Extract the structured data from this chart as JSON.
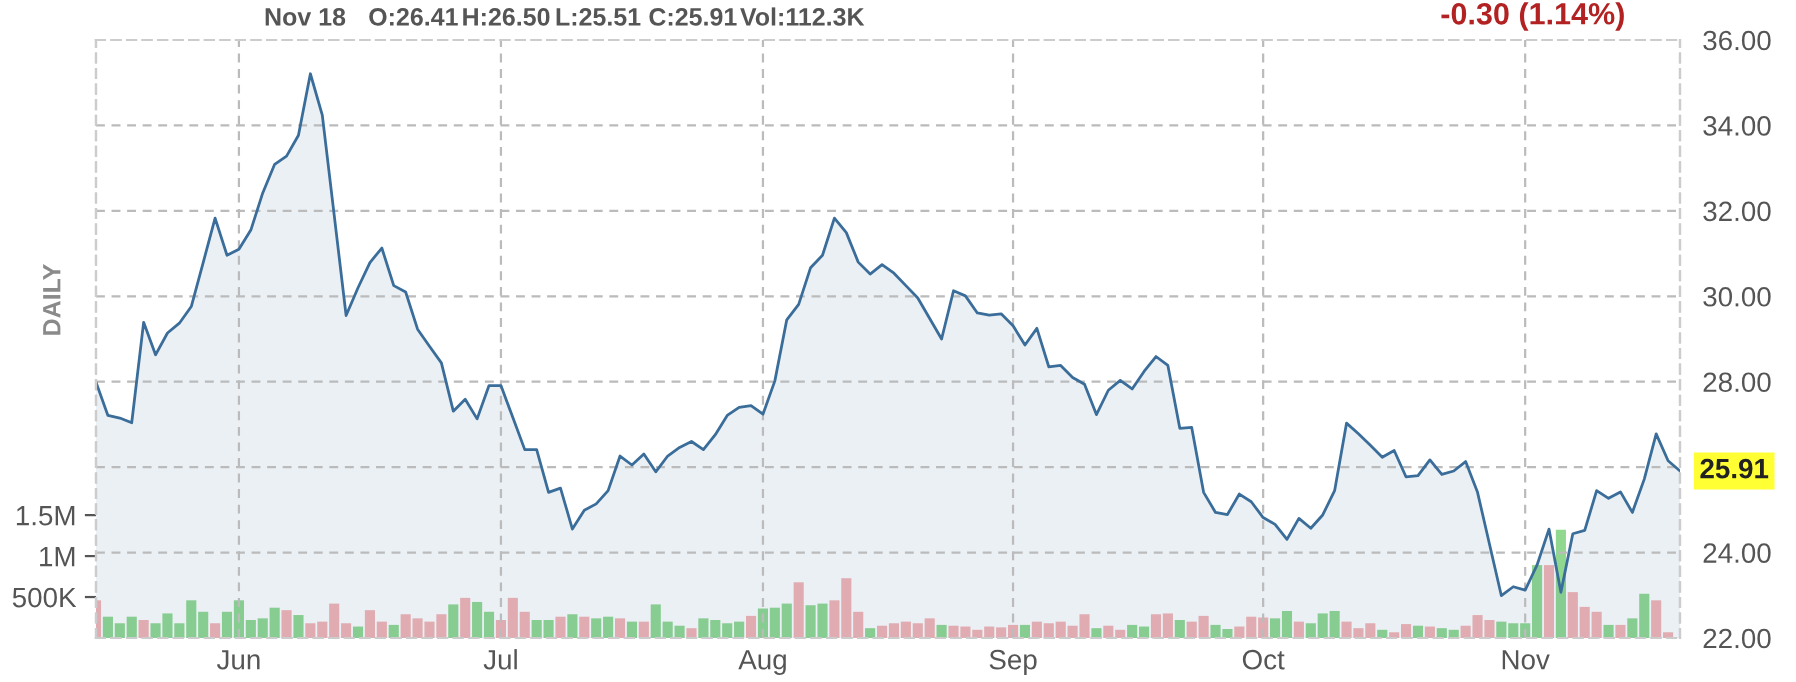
{
  "chart_data": {
    "type": "area",
    "annotations": [
      "Nov 18",
      "O:26.41",
      "H:26.50",
      "L:25.51",
      "C:25.91",
      "Vol:112.3K",
      "-0.30 (1.14%)",
      "DAILY",
      "25.91"
    ],
    "categories": [
      null,
      null,
      null,
      null,
      null,
      null,
      null,
      null,
      null,
      null,
      null,
      null,
      "Jun",
      null,
      null,
      null,
      null,
      null,
      null,
      null,
      null,
      null,
      null,
      null,
      null,
      null,
      null,
      null,
      null,
      null,
      null,
      null,
      null,
      null,
      "Jul",
      null,
      null,
      null,
      null,
      null,
      null,
      null,
      null,
      null,
      null,
      null,
      null,
      null,
      null,
      null,
      null,
      null,
      null,
      null,
      null,
      null,
      "Aug",
      null,
      null,
      null,
      null,
      null,
      null,
      null,
      null,
      null,
      null,
      null,
      null,
      null,
      null,
      null,
      null,
      null,
      null,
      null,
      null,
      "Sep",
      null,
      null,
      null,
      null,
      null,
      null,
      null,
      null,
      null,
      null,
      null,
      null,
      null,
      null,
      null,
      null,
      null,
      null,
      null,
      null,
      "Oct",
      null,
      null,
      null,
      null,
      null,
      null,
      null,
      null,
      null,
      null,
      null,
      null,
      null,
      null,
      null,
      null,
      null,
      null,
      null,
      null,
      null,
      "Nov",
      null,
      null,
      null,
      null,
      null,
      null,
      null,
      null,
      null,
      null,
      null,
      null,
      null
    ],
    "series": [
      {
        "color": "#3a6d9a",
        "values": [
          27.99,
          27.21,
          27.15,
          27.04,
          29.39,
          28.63,
          29.14,
          29.37,
          29.76,
          30.79,
          31.83,
          30.96,
          31.1,
          31.55,
          32.42,
          33.09,
          33.28,
          33.77,
          35.21,
          34.24,
          31.9,
          29.55,
          30.2,
          30.79,
          31.13,
          30.25,
          30.1,
          29.23,
          28.83,
          28.44,
          27.31,
          27.59,
          27.13,
          27.91,
          27.91,
          27.16,
          26.41,
          26.41,
          25.41,
          25.51,
          24.55,
          24.99,
          25.14,
          25.45,
          26.26,
          26.05,
          26.31,
          25.89,
          26.26,
          26.46,
          26.6,
          26.41,
          26.76,
          27.21,
          27.4,
          27.44,
          27.24,
          28.02,
          29.45,
          29.81,
          30.67,
          30.96,
          31.83,
          31.49,
          30.8,
          30.52,
          30.74,
          30.54,
          30.25,
          29.96,
          29.48,
          29.0,
          30.13,
          30.01,
          29.61,
          29.56,
          29.59,
          29.31,
          28.86,
          29.25,
          28.35,
          28.38,
          28.1,
          27.94,
          27.23,
          27.8,
          28.03,
          27.83,
          28.24,
          28.59,
          28.38,
          26.91,
          26.93,
          25.41,
          24.94,
          24.89,
          25.37,
          25.19,
          24.82,
          24.66,
          24.31,
          24.8,
          24.57,
          24.88,
          25.45,
          27.03,
          26.78,
          26.51,
          26.23,
          26.39,
          25.77,
          25.8,
          26.17,
          25.83,
          25.91,
          26.13,
          25.41,
          24.2,
          22.99,
          23.2,
          23.12,
          23.71,
          24.55,
          23.07,
          24.44,
          24.52,
          25.45,
          25.27,
          25.42,
          24.94,
          25.72,
          26.78,
          26.15,
          25.91
        ]
      },
      {
        "type": "bar",
        "axis": "y2",
        "values": [
          460000,
          260000,
          180000,
          260000,
          220000,
          180000,
          300000,
          180000,
          460000,
          320000,
          180000,
          320000,
          460000,
          220000,
          240000,
          370000,
          340000,
          280000,
          180000,
          200000,
          420000,
          180000,
          140000,
          340000,
          200000,
          160000,
          290000,
          240000,
          200000,
          290000,
          410000,
          490000,
          440000,
          320000,
          220000,
          490000,
          320000,
          220000,
          220000,
          260000,
          290000,
          260000,
          240000,
          260000,
          240000,
          200000,
          200000,
          410000,
          200000,
          150000,
          120000,
          240000,
          220000,
          180000,
          200000,
          270000,
          360000,
          370000,
          420000,
          680000,
          400000,
          420000,
          460000,
          730000,
          320000,
          120000,
          150000,
          180000,
          200000,
          180000,
          240000,
          160000,
          150000,
          140000,
          100000,
          140000,
          130000,
          160000,
          160000,
          200000,
          180000,
          200000,
          150000,
          290000,
          120000,
          150000,
          100000,
          160000,
          140000,
          290000,
          300000,
          220000,
          200000,
          270000,
          160000,
          110000,
          140000,
          260000,
          250000,
          240000,
          330000,
          200000,
          180000,
          300000,
          330000,
          200000,
          120000,
          180000,
          100000,
          70000,
          170000,
          150000,
          140000,
          120000,
          100000,
          150000,
          280000,
          220000,
          200000,
          180000,
          180000,
          890000,
          890000,
          1320000,
          560000,
          380000,
          320000,
          160000,
          160000,
          240000,
          540000,
          460000,
          70000,
          null
        ],
        "colors": [
          "#f4b4b4",
          "#90d890",
          "#90d890",
          "#90d890",
          "#f4b4b4",
          "#90d890",
          "#90d890",
          "#90d890",
          "#90d890",
          "#90d890",
          "#f4b4b4",
          "#90d890",
          "#90d890",
          "#90d890",
          "#90d890",
          "#90d890",
          "#f4b4b4",
          "#90d890",
          "#f4b4b4",
          "#f4b4b4",
          "#f4b4b4",
          "#f4b4b4",
          "#90d890",
          "#f4b4b4",
          "#f4b4b4",
          "#90d890",
          "#f4b4b4",
          "#f4b4b4",
          "#f4b4b4",
          "#f4b4b4",
          "#90d890",
          "#f4b4b4",
          "#90d890",
          "#90d890",
          "#f4b4b4",
          "#f4b4b4",
          "#f4b4b4",
          "#90d890",
          "#90d890",
          "#f4b4b4",
          "#90d890",
          "#f4b4b4",
          "#90d890",
          "#90d890",
          "#f4b4b4",
          "#90d890",
          "#f4b4b4",
          "#90d890",
          "#90d890",
          "#90d890",
          "#f4b4b4",
          "#90d890",
          "#90d890",
          "#90d890",
          "#90d890",
          "#f4b4b4",
          "#90d890",
          "#90d890",
          "#90d890",
          "#f4b4b4",
          "#90d890",
          "#90d890",
          "#f4b4b4",
          "#f4b4b4",
          "#f4b4b4",
          "#90d890",
          "#f4b4b4",
          "#f4b4b4",
          "#f4b4b4",
          "#f4b4b4",
          "#f4b4b4",
          "#90d890",
          "#f4b4b4",
          "#f4b4b4",
          "#f4b4b4",
          "#f4b4b4",
          "#f4b4b4",
          "#f4b4b4",
          "#90d890",
          "#f4b4b4",
          "#f4b4b4",
          "#f4b4b4",
          "#f4b4b4",
          "#f4b4b4",
          "#90d890",
          "#f4b4b4",
          "#f4b4b4",
          "#90d890",
          "#90d890",
          "#f4b4b4",
          "#f4b4b4",
          "#90d890",
          "#f4b4b4",
          "#f4b4b4",
          "#90d890",
          "#90d890",
          "#f4b4b4",
          "#f4b4b4",
          "#f4b4b4",
          "#90d890",
          "#90d890",
          "#f4b4b4",
          "#90d890",
          "#90d890",
          "#90d890",
          "#f4b4b4",
          "#f4b4b4",
          "#f4b4b4",
          "#90d890",
          "#f4b4b4",
          "#f4b4b4",
          "#90d890",
          "#f4b4b4",
          "#90d890",
          "#90d890",
          "#f4b4b4",
          "#f4b4b4",
          "#f4b4b4",
          "#90d890",
          "#90d890",
          "#90d890",
          "#90d890",
          "#f4b4b4",
          "#90d890",
          "#f4b4b4",
          "#f4b4b4",
          "#f4b4b4",
          "#90d890",
          "#f4b4b4",
          "#90d890",
          "#90d890",
          "#f4b4b4",
          "#f4b4b4",
          "#f4b4b4"
        ]
      }
    ],
    "ylim": [
      22,
      36
    ],
    "yticks": [
      {
        "value": 22,
        "label": "22.00"
      },
      {
        "value": 24,
        "label": "24.00"
      },
      {
        "value": 26,
        "label": null
      },
      {
        "value": 28,
        "label": "28.00"
      },
      {
        "value": 30,
        "label": "30.00"
      },
      {
        "value": 32,
        "label": "32.00"
      },
      {
        "value": 34,
        "label": "34.00"
      },
      {
        "value": 36,
        "label": "36.00"
      }
    ],
    "y2lim": [
      0,
      7300000
    ],
    "y2ticks": [
      {
        "value": 500000,
        "label": "500K"
      },
      {
        "value": 1000000,
        "label": "1M"
      },
      {
        "value": 1500000,
        "label": "1.5M"
      }
    ],
    "grid": true
  }
}
